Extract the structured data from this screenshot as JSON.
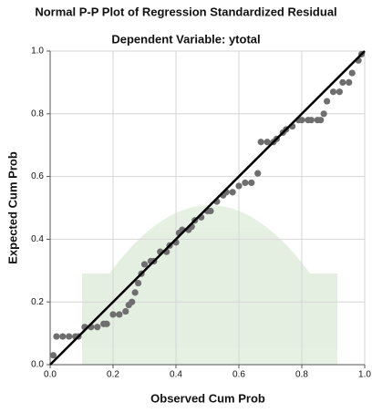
{
  "chart_data": {
    "type": "scatter",
    "title": "Normal P-P Plot of Regression Standardized Residual",
    "subtitle": "Dependent Variable: ytotal",
    "x_label": "Observed Cum Prob",
    "y_label": "Expected Cum Prob",
    "xlim": [
      0,
      1
    ],
    "ylim": [
      0,
      1
    ],
    "xticks": [
      {
        "value": 0,
        "label": "0.0"
      },
      0.2,
      0.4,
      0.6,
      0.8,
      {
        "value": 1,
        "label": "1.0"
      }
    ],
    "yticks": [
      {
        "value": 0,
        "label": "0.0"
      },
      0.2,
      0.4,
      0.6,
      0.8,
      {
        "value": 1,
        "label": "1.0"
      }
    ],
    "grid": true,
    "reference_line_color": "#000000",
    "series": [
      {
        "color": "#6e6e6e",
        "x": [
          0.01,
          0.02,
          0.04,
          0.06,
          0.08,
          0.09,
          0.11,
          0.13,
          0.15,
          0.17,
          0.18,
          0.2,
          0.22,
          0.24,
          0.25,
          0.26,
          0.27,
          0.28,
          0.29,
          0.3,
          0.32,
          0.33,
          0.35,
          0.37,
          0.38,
          0.4,
          0.41,
          0.42,
          0.44,
          0.45,
          0.46,
          0.48,
          0.5,
          0.51,
          0.53,
          0.55,
          0.56,
          0.58,
          0.6,
          0.62,
          0.64,
          0.66,
          0.67,
          0.69,
          0.71,
          0.72,
          0.74,
          0.75,
          0.77,
          0.79,
          0.8,
          0.82,
          0.83,
          0.85,
          0.86,
          0.87,
          0.88,
          0.9,
          0.92,
          0.93,
          0.95,
          0.96,
          0.98,
          0.99
        ],
        "values": [
          0.03,
          0.09,
          0.09,
          0.09,
          0.09,
          0.09,
          0.12,
          0.12,
          0.12,
          0.13,
          0.13,
          0.16,
          0.16,
          0.17,
          0.19,
          0.2,
          0.23,
          0.26,
          0.29,
          0.32,
          0.33,
          0.33,
          0.36,
          0.36,
          0.38,
          0.39,
          0.42,
          0.43,
          0.43,
          0.44,
          0.46,
          0.47,
          0.49,
          0.49,
          0.52,
          0.54,
          0.55,
          0.55,
          0.57,
          0.58,
          0.58,
          0.61,
          0.71,
          0.71,
          0.71,
          0.72,
          0.74,
          0.75,
          0.76,
          0.78,
          0.78,
          0.78,
          0.78,
          0.78,
          0.78,
          0.8,
          0.84,
          0.87,
          0.87,
          0.9,
          0.9,
          0.93,
          0.97,
          0.99
        ]
      }
    ]
  }
}
